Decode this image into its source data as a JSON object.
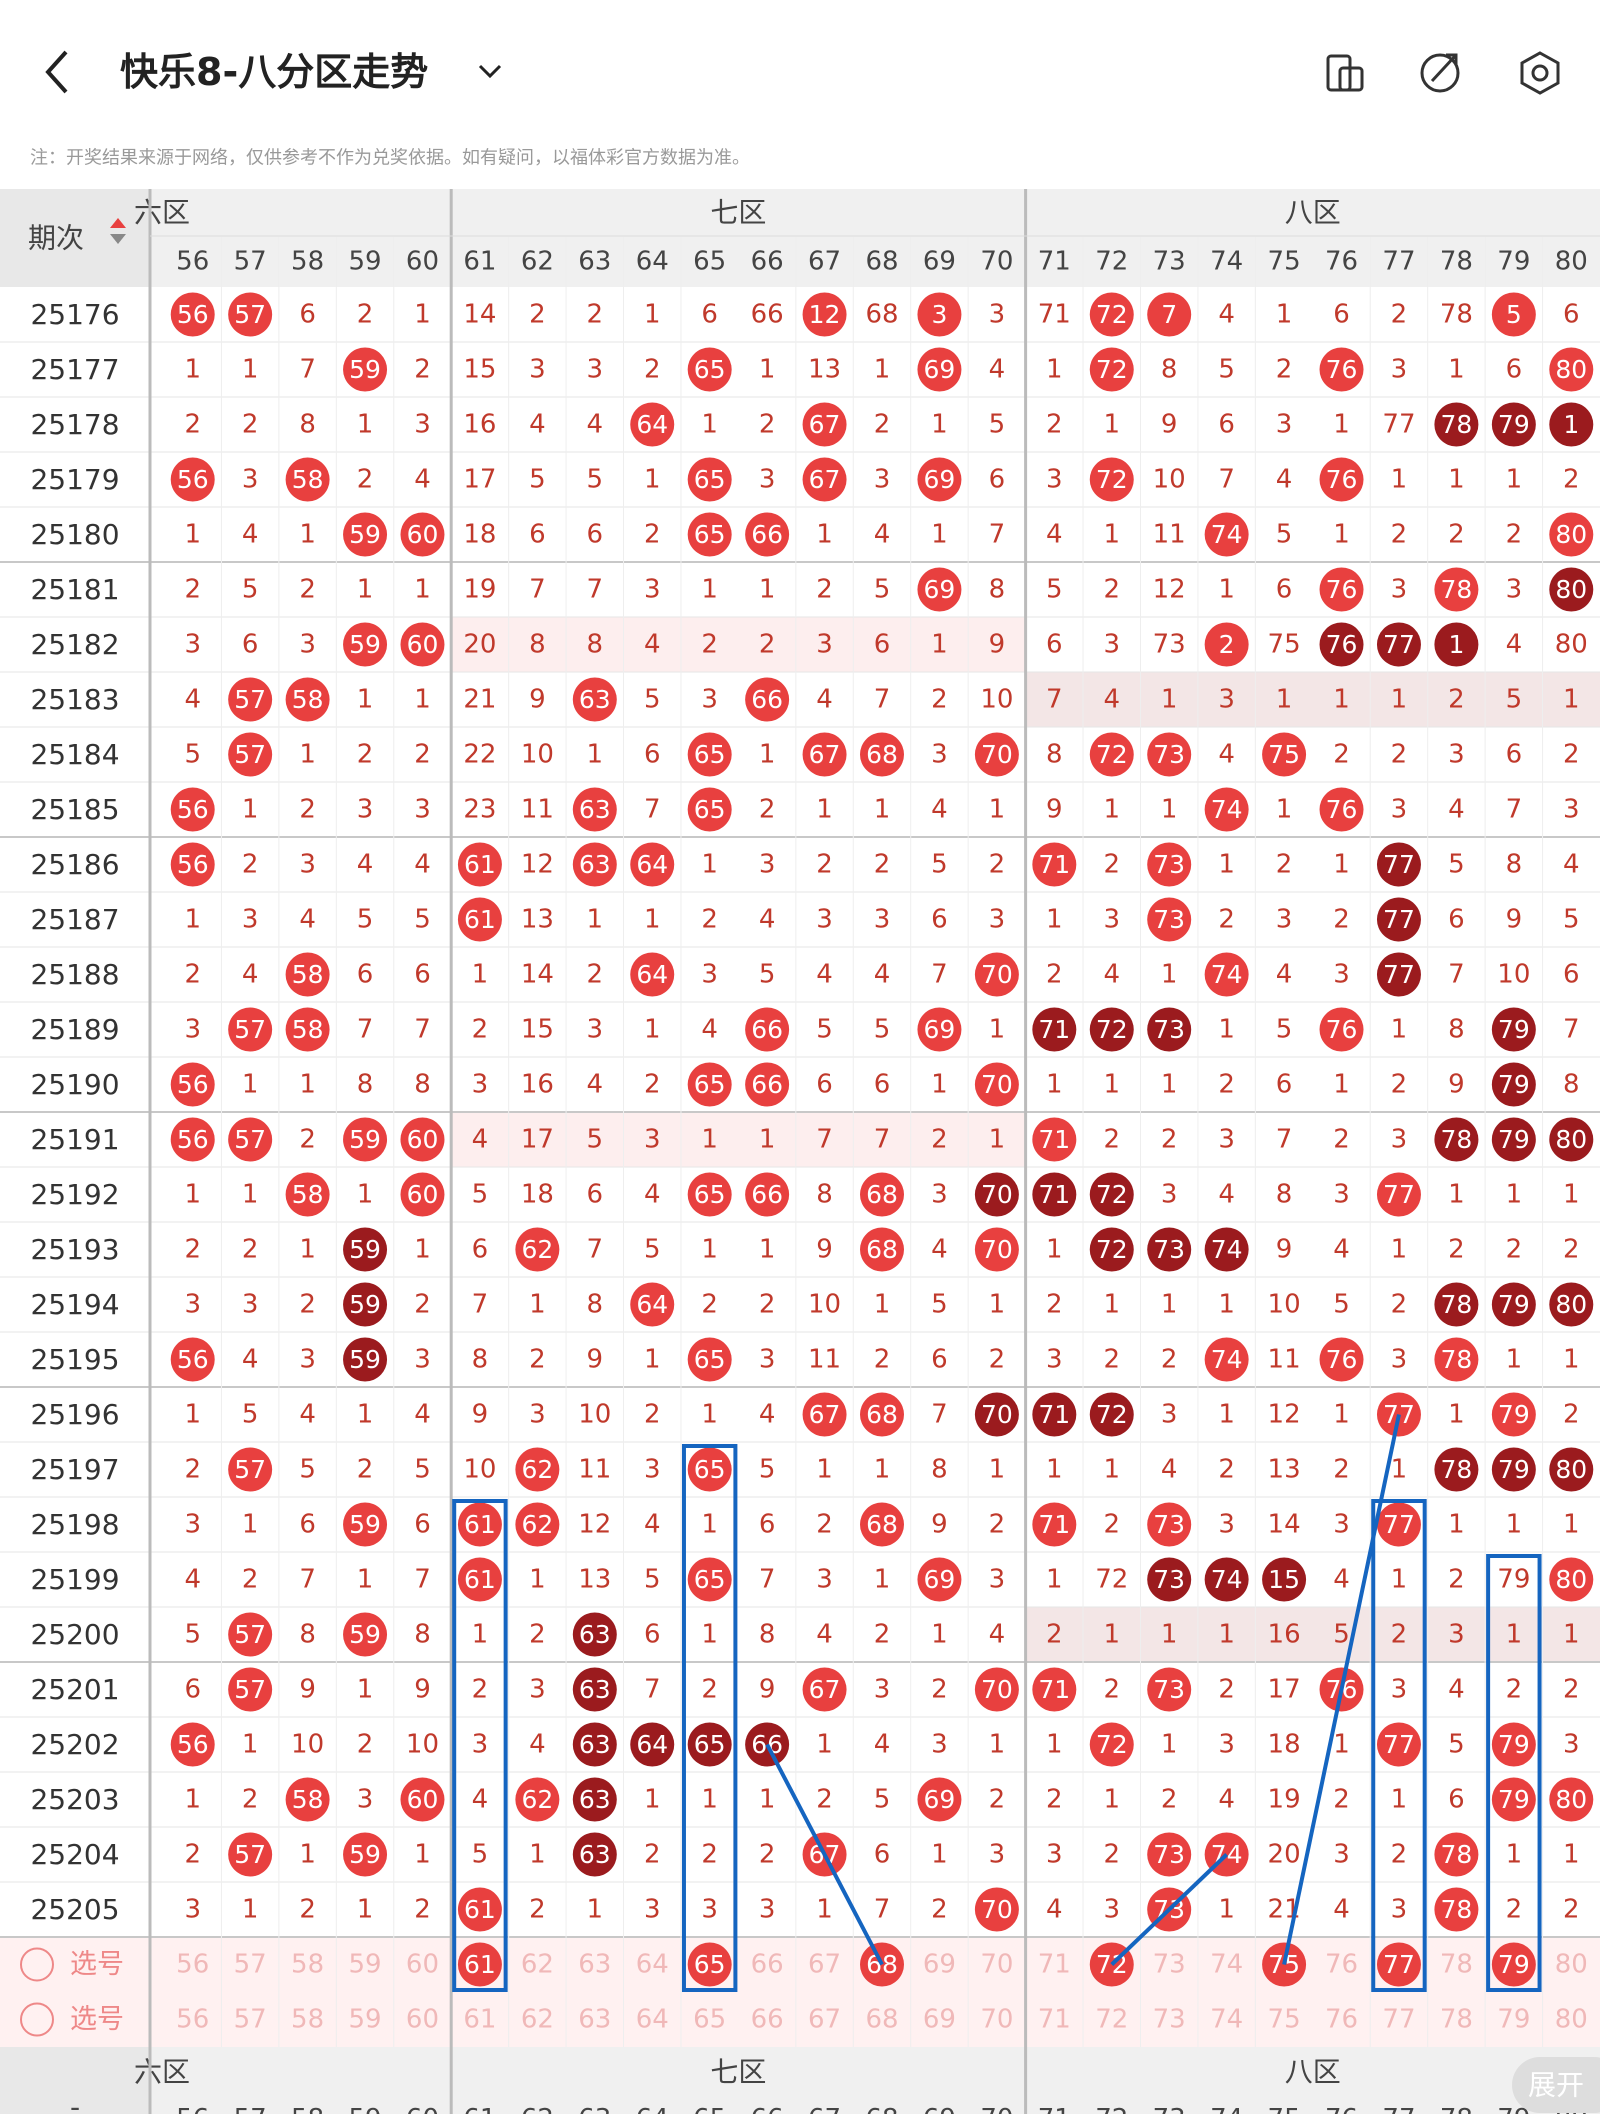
{
  "header": {
    "title": "快乐8-八分区走势",
    "note": "注：开奖结果来源于网络，仅供参考不作为兑奖依据。如有疑问，以福体彩官方数据为准。"
  },
  "table": {
    "period_label": "期次",
    "zones": [
      {
        "name": "六区",
        "span": 5
      },
      {
        "name": "七区",
        "span": 10
      },
      {
        "name": "八区",
        "span": 10
      }
    ],
    "columns": [
      56,
      57,
      58,
      59,
      60,
      61,
      62,
      63,
      64,
      65,
      66,
      67,
      68,
      69,
      70,
      71,
      72,
      73,
      74,
      75,
      76,
      77,
      78,
      79,
      80
    ],
    "rows": [
      {
        "period": "25176",
        "cells": [
          56,
          57,
          6,
          2,
          1,
          14,
          2,
          2,
          1,
          6,
          66,
          12,
          68,
          3,
          3,
          71,
          72,
          7,
          4,
          1,
          6,
          2,
          78,
          5,
          6
        ],
        "marks": "rr.........r.r..rr.....r.."
      },
      {
        "period": "25177",
        "cells": [
          1,
          1,
          7,
          59,
          2,
          15,
          3,
          3,
          2,
          65,
          1,
          13,
          1,
          69,
          4,
          1,
          72,
          8,
          5,
          2,
          76,
          3,
          1,
          6,
          80
        ],
        "marks": "...r.....r...r..r...r...r"
      },
      {
        "period": "25178",
        "cells": [
          2,
          2,
          8,
          1,
          3,
          16,
          4,
          4,
          64,
          1,
          2,
          67,
          2,
          1,
          5,
          2,
          1,
          9,
          6,
          3,
          1,
          77,
          78,
          79,
          1
        ],
        "marks": "........r..r..........ddd."
      },
      {
        "period": "25179",
        "cells": [
          56,
          3,
          58,
          2,
          4,
          17,
          5,
          5,
          1,
          65,
          3,
          67,
          3,
          69,
          6,
          3,
          72,
          10,
          7,
          4,
          76,
          1,
          1,
          1,
          2
        ],
        "marks": "r.r......r.r.r..r...r...."
      },
      {
        "period": "25180",
        "cells": [
          1,
          4,
          1,
          59,
          60,
          18,
          6,
          6,
          2,
          65,
          66,
          1,
          4,
          1,
          7,
          4,
          1,
          11,
          74,
          5,
          1,
          2,
          2,
          2,
          80
        ],
        "marks": "...rr....rr.......r.....r"
      },
      {
        "period": "25181",
        "cells": [
          2,
          5,
          2,
          1,
          1,
          19,
          7,
          7,
          3,
          1,
          1,
          2,
          5,
          69,
          8,
          5,
          2,
          12,
          1,
          6,
          76,
          3,
          78,
          3,
          80
        ],
        "marks": ".............r......r.r.d"
      },
      {
        "period": "25182",
        "cells": [
          3,
          6,
          3,
          59,
          60,
          20,
          8,
          8,
          4,
          2,
          2,
          3,
          6,
          1,
          9,
          6,
          3,
          73,
          2,
          75,
          76,
          77,
          1,
          4,
          80
        ],
        "marks": "...rr.............r.ddd..d"
      },
      {
        "period": "25183",
        "cells": [
          4,
          57,
          58,
          1,
          1,
          21,
          9,
          63,
          5,
          3,
          66,
          4,
          7,
          2,
          10,
          7,
          4,
          1,
          3,
          1,
          1,
          1,
          2,
          5,
          1
        ],
        "marks": ".rr....r..r..............."
      },
      {
        "period": "25184",
        "cells": [
          5,
          57,
          1,
          2,
          2,
          22,
          10,
          1,
          6,
          65,
          1,
          67,
          68,
          3,
          70,
          8,
          72,
          73,
          4,
          75,
          2,
          2,
          3,
          6,
          2
        ],
        "marks": ".r.......r.rr.r.rr.r....."
      },
      {
        "period": "25185",
        "cells": [
          56,
          1,
          2,
          3,
          3,
          23,
          11,
          63,
          7,
          65,
          2,
          1,
          1,
          4,
          1,
          9,
          1,
          1,
          74,
          1,
          76,
          3,
          4,
          7,
          3
        ],
        "marks": "r......r.r........r.r...."
      },
      {
        "period": "25186",
        "cells": [
          56,
          2,
          3,
          4,
          4,
          61,
          12,
          63,
          64,
          1,
          3,
          2,
          2,
          5,
          2,
          71,
          2,
          73,
          1,
          2,
          1,
          77,
          5,
          8,
          4
        ],
        "marks": "r....r.rr......r.r...d..."
      },
      {
        "period": "25187",
        "cells": [
          1,
          3,
          4,
          5,
          5,
          61,
          13,
          1,
          1,
          2,
          4,
          3,
          3,
          6,
          3,
          1,
          3,
          73,
          2,
          3,
          2,
          77,
          6,
          9,
          5
        ],
        "marks": ".....r...........r...d..."
      },
      {
        "period": "25188",
        "cells": [
          2,
          4,
          58,
          6,
          6,
          1,
          14,
          2,
          64,
          3,
          5,
          4,
          4,
          7,
          70,
          2,
          4,
          1,
          74,
          4,
          3,
          77,
          7,
          10,
          6
        ],
        "marks": "..r.....r.....r...r..d..."
      },
      {
        "period": "25189",
        "cells": [
          3,
          57,
          58,
          7,
          7,
          2,
          15,
          3,
          1,
          4,
          66,
          5,
          5,
          69,
          1,
          71,
          72,
          73,
          1,
          5,
          76,
          1,
          8,
          79,
          7
        ],
        "marks": ".rr.......r..r.ddd..r..d."
      },
      {
        "period": "25190",
        "cells": [
          56,
          1,
          1,
          8,
          8,
          3,
          16,
          4,
          2,
          65,
          66,
          6,
          6,
          1,
          70,
          1,
          1,
          1,
          2,
          6,
          1,
          2,
          9,
          79,
          8
        ],
        "marks": "r........rr...r........d."
      },
      {
        "period": "25191",
        "cells": [
          56,
          57,
          2,
          59,
          60,
          4,
          17,
          5,
          3,
          1,
          1,
          7,
          7,
          2,
          1,
          71,
          2,
          2,
          3,
          7,
          2,
          3,
          78,
          79,
          80
        ],
        "marks": "rr.rr..........r......ddd"
      },
      {
        "period": "25192",
        "cells": [
          1,
          1,
          58,
          1,
          60,
          5,
          18,
          6,
          4,
          65,
          66,
          8,
          68,
          3,
          70,
          71,
          72,
          3,
          4,
          8,
          3,
          77,
          1,
          1,
          1
        ],
        "marks": "..r.r....rr.r.ddd....r..."
      },
      {
        "period": "25193",
        "cells": [
          2,
          2,
          1,
          59,
          1,
          6,
          62,
          7,
          5,
          1,
          1,
          9,
          68,
          4,
          70,
          1,
          72,
          73,
          74,
          9,
          4,
          1,
          2,
          2,
          2
        ],
        "marks": "...d..r.....r.r.ddd......"
      },
      {
        "period": "25194",
        "cells": [
          3,
          3,
          2,
          59,
          2,
          7,
          1,
          8,
          64,
          2,
          2,
          10,
          1,
          5,
          1,
          2,
          1,
          1,
          1,
          10,
          5,
          2,
          78,
          79,
          80
        ],
        "marks": "...d....r.............ddd"
      },
      {
        "period": "25195",
        "cells": [
          56,
          4,
          3,
          59,
          3,
          8,
          2,
          9,
          1,
          65,
          3,
          11,
          2,
          6,
          2,
          3,
          2,
          2,
          74,
          11,
          76,
          3,
          78,
          1,
          1
        ],
        "marks": "r..d.....r........r.r.r.."
      },
      {
        "period": "25196",
        "cells": [
          1,
          5,
          4,
          1,
          4,
          9,
          3,
          10,
          2,
          1,
          4,
          67,
          68,
          7,
          70,
          71,
          72,
          3,
          1,
          12,
          1,
          77,
          1,
          79,
          2
        ],
        "marks": "...........rr.ddd....r.r."
      },
      {
        "period": "25197",
        "cells": [
          2,
          57,
          5,
          2,
          5,
          10,
          62,
          11,
          3,
          65,
          5,
          1,
          1,
          8,
          1,
          1,
          1,
          4,
          2,
          13,
          2,
          1,
          78,
          79,
          80
        ],
        "marks": ".r....r..r............ddd"
      },
      {
        "period": "25198",
        "cells": [
          3,
          1,
          6,
          59,
          6,
          61,
          62,
          12,
          4,
          1,
          6,
          2,
          68,
          9,
          2,
          71,
          2,
          73,
          3,
          14,
          3,
          77,
          1,
          1,
          1
        ],
        "marks": "...r.rr.....r..r.r...r..."
      },
      {
        "period": "25199",
        "cells": [
          4,
          2,
          7,
          1,
          7,
          61,
          1,
          13,
          5,
          65,
          7,
          3,
          1,
          69,
          3,
          1,
          72,
          73,
          74,
          15,
          4,
          1,
          2,
          79,
          80
        ],
        "marks": ".....r...r...r...ddd....rr"
      },
      {
        "period": "25200",
        "cells": [
          5,
          57,
          8,
          59,
          8,
          1,
          2,
          63,
          6,
          1,
          8,
          4,
          2,
          1,
          4,
          2,
          1,
          1,
          1,
          16,
          5,
          2,
          3,
          1,
          1
        ],
        "marks": ".r.r...d................."
      },
      {
        "period": "25201",
        "cells": [
          6,
          57,
          9,
          1,
          9,
          2,
          3,
          63,
          7,
          2,
          9,
          67,
          3,
          2,
          70,
          71,
          2,
          73,
          2,
          17,
          76,
          3,
          4,
          2,
          2
        ],
        "marks": ".r.....d...r..rr.r..r...."
      },
      {
        "period": "25202",
        "cells": [
          56,
          1,
          10,
          2,
          10,
          3,
          4,
          63,
          64,
          65,
          66,
          1,
          4,
          3,
          1,
          1,
          72,
          1,
          3,
          18,
          1,
          77,
          5,
          79,
          3
        ],
        "marks": "r......dddd.....r....r.r."
      },
      {
        "period": "25203",
        "cells": [
          1,
          2,
          58,
          3,
          60,
          4,
          62,
          63,
          1,
          1,
          1,
          2,
          5,
          69,
          2,
          2,
          1,
          2,
          4,
          19,
          2,
          1,
          6,
          79,
          80
        ],
        "marks": "..r.r.rd.....r.........rr"
      },
      {
        "period": "25204",
        "cells": [
          2,
          57,
          1,
          59,
          1,
          5,
          1,
          63,
          2,
          2,
          2,
          67,
          6,
          1,
          3,
          3,
          2,
          73,
          74,
          20,
          3,
          2,
          78,
          1,
          1
        ],
        "marks": ".r.r...d...r.....rr...r.."
      },
      {
        "period": "25205",
        "cells": [
          3,
          1,
          2,
          1,
          2,
          61,
          2,
          1,
          3,
          3,
          3,
          1,
          7,
          2,
          70,
          4,
          3,
          73,
          1,
          21,
          4,
          3,
          78,
          2,
          2
        ],
        "marks": ".....r........r..r....r.."
      }
    ],
    "selection_rows": [
      {
        "label": "选号",
        "marks": ".....r...r..r...r..r.r.r."
      },
      {
        "label": "选号",
        "marks": "........................."
      }
    ],
    "collapse_label": "-",
    "expand_button": "展开"
  }
}
